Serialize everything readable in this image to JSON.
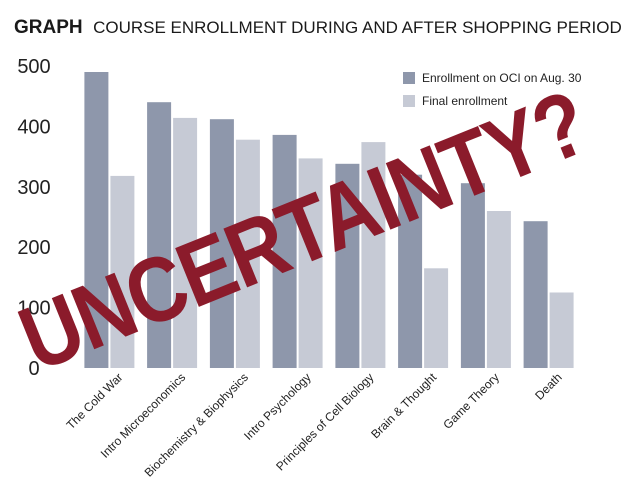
{
  "chart_data": {
    "type": "bar",
    "title_prefix": "GRAPH",
    "title": "COURSE ENROLLMENT DURING AND AFTER SHOPPING PERIOD",
    "categories": [
      "The Cold War",
      "Intro Microeconomics",
      "Biochemistry & Biophysics",
      "Intro Psychology",
      "Principles of Cell Biology",
      "Brain & Thought",
      "Game Theory",
      "Death"
    ],
    "series": [
      {
        "name": "Enrollment on OCI on Aug. 30",
        "color": "#8e97ab",
        "values": [
          490,
          440,
          412,
          386,
          338,
          320,
          306,
          243
        ]
      },
      {
        "name": "Final enrollment",
        "color": "#c6cad5",
        "values": [
          318,
          414,
          378,
          347,
          374,
          165,
          260,
          125
        ]
      }
    ],
    "ylim": [
      0,
      500
    ],
    "yticks": [
      0,
      100,
      200,
      300,
      400,
      500
    ],
    "grid": false,
    "legend": "top-right",
    "overlay_text": "UNCERTAINTY?",
    "overlay_color": "#8b1b2b"
  }
}
